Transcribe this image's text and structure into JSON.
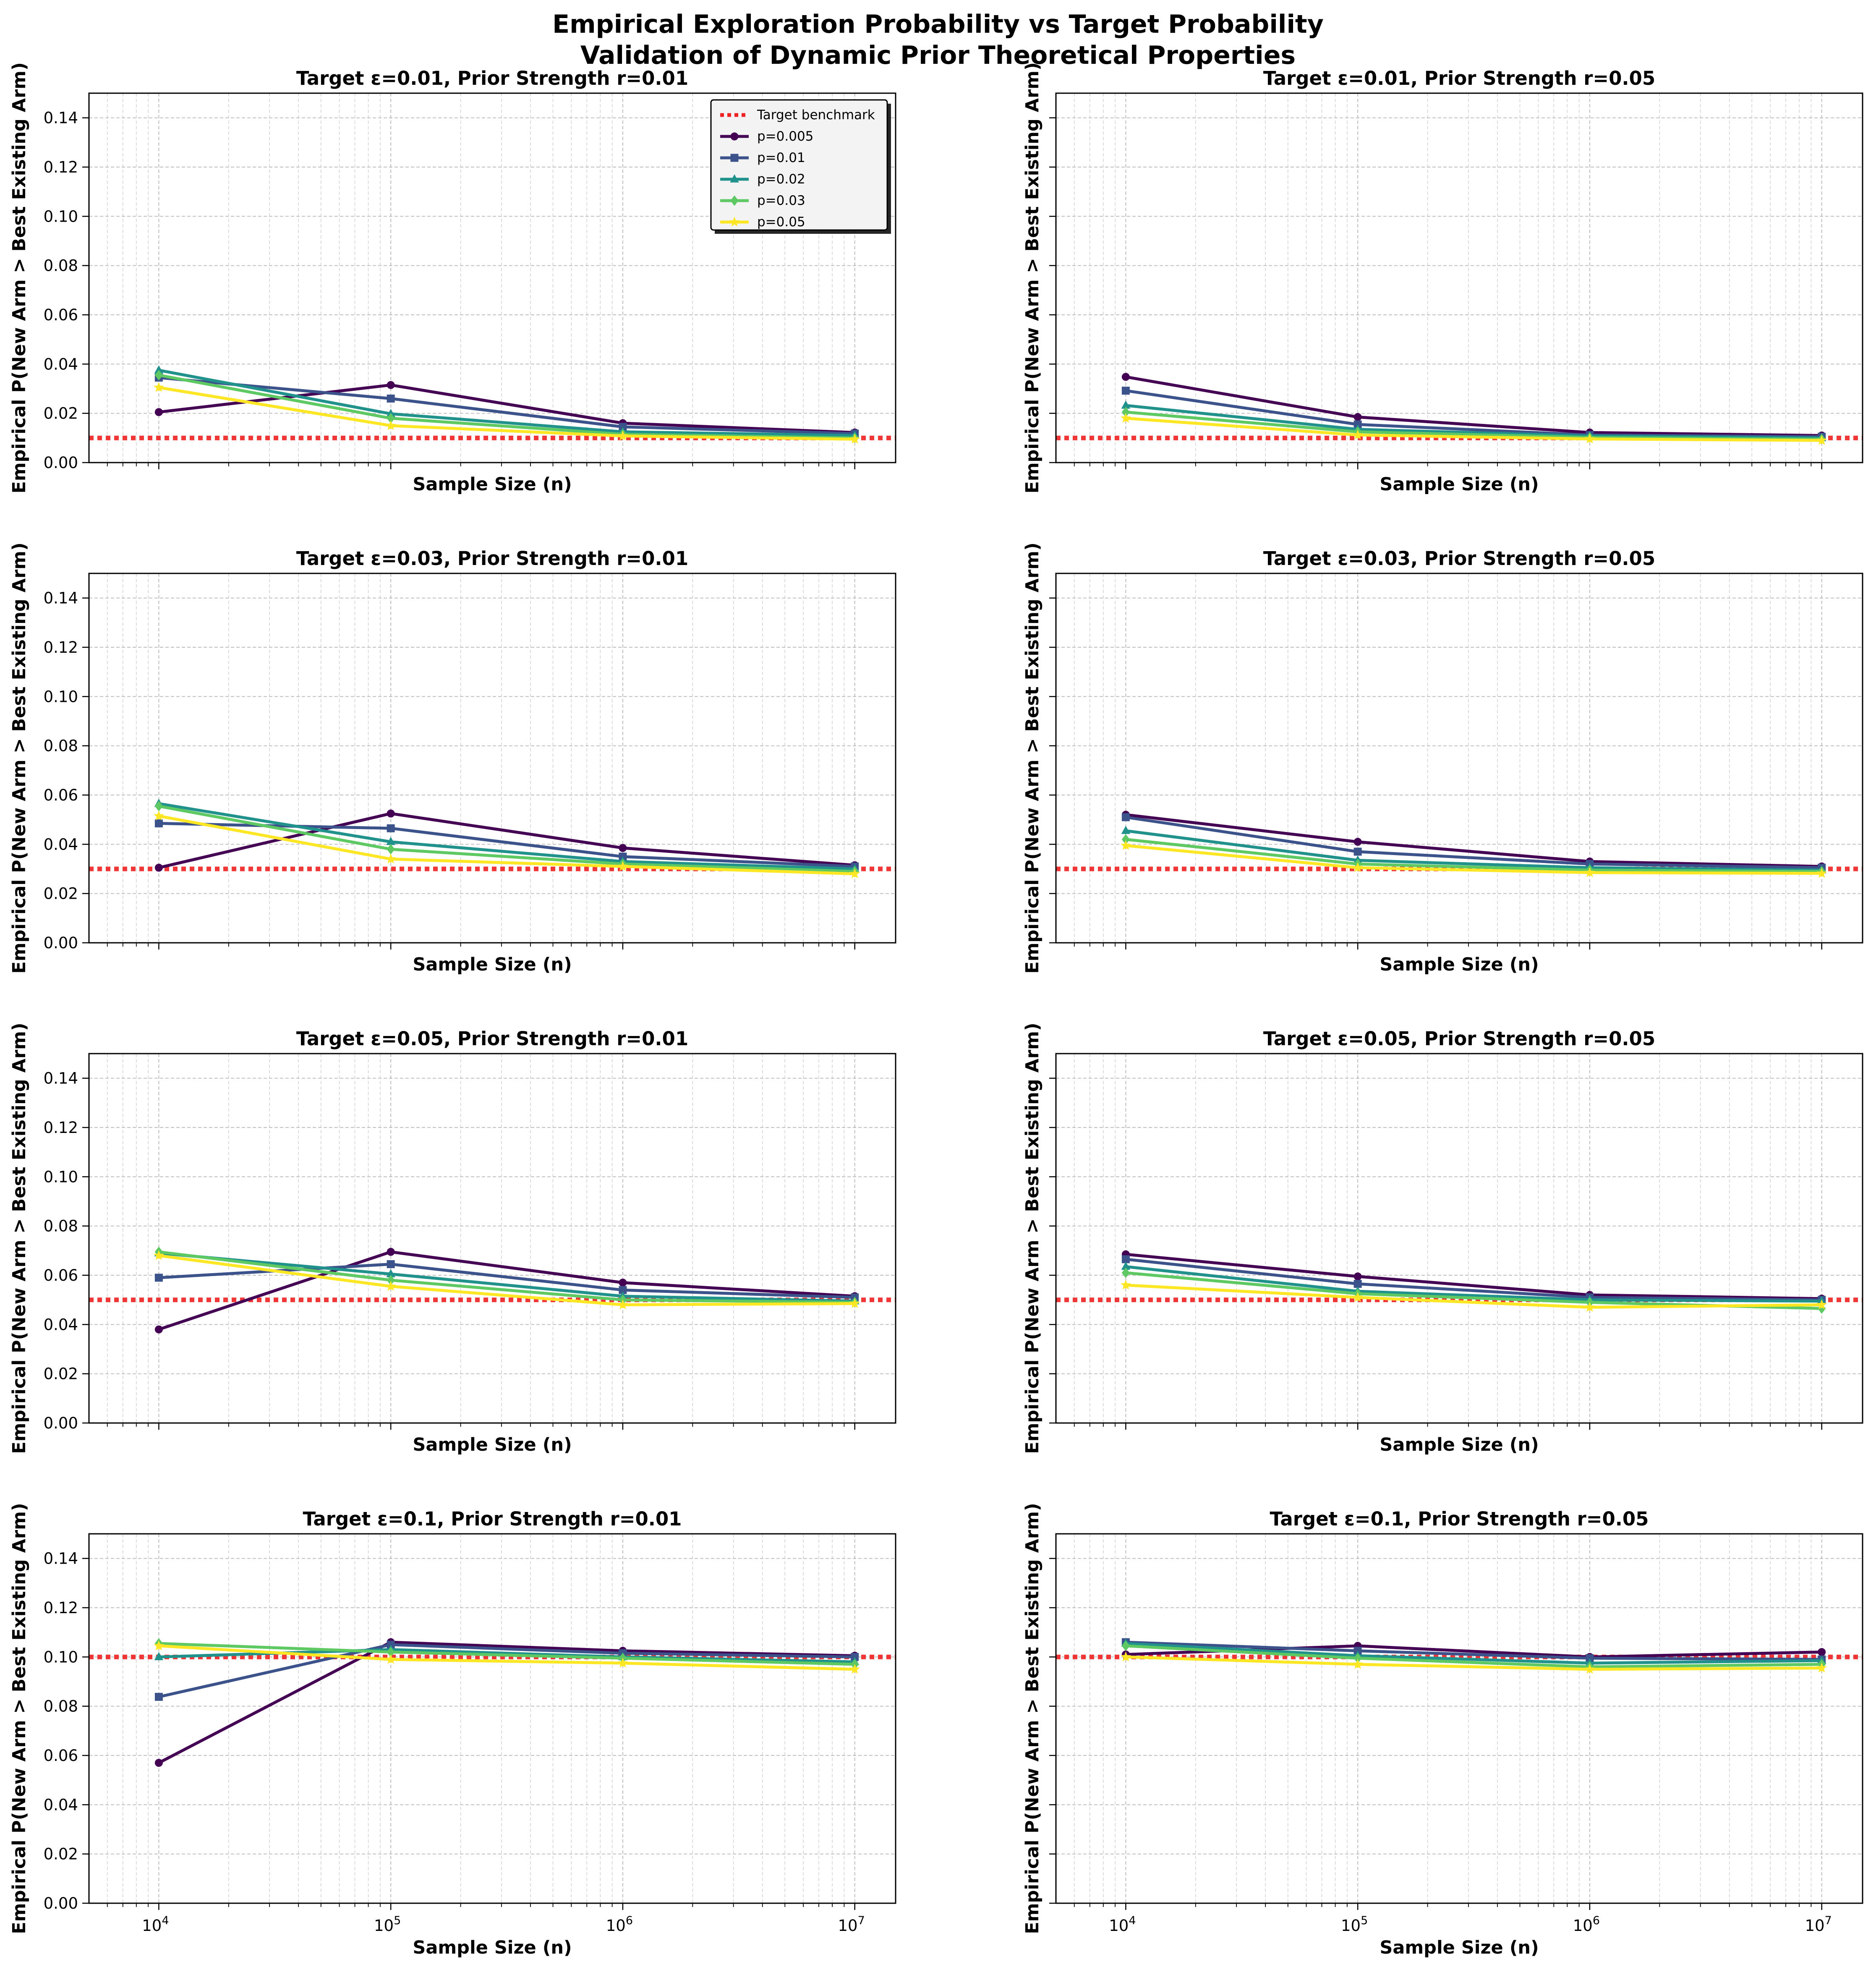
{
  "figure": {
    "title_line1": "Empirical Exploration Probability vs Target Probability",
    "title_line2": "Validation of Dynamic Prior Theoretical Properties"
  },
  "chart_data": {
    "type": "line",
    "xscale": "log",
    "x": [
      10000,
      100000,
      1000000,
      10000000
    ],
    "xlabel": "Sample Size (n)",
    "ylabel": "Empirical P(New Arm > Best Existing Arm)",
    "xlim": [
      5000,
      15000000
    ],
    "ylim": [
      0,
      0.15
    ],
    "yticks": [
      0.0,
      0.02,
      0.04,
      0.06,
      0.08,
      0.1,
      0.12,
      0.14
    ],
    "ytick_labels": [
      "0.00",
      "0.02",
      "0.04",
      "0.06",
      "0.08",
      "0.10",
      "0.12",
      "0.14"
    ],
    "xtick_labels": [
      {
        "base": "10",
        "exp": "4"
      },
      {
        "base": "10",
        "exp": "5"
      },
      {
        "base": "10",
        "exp": "6"
      },
      {
        "base": "10",
        "exp": "7"
      }
    ],
    "grid": true,
    "legend": {
      "location": "upper-right",
      "benchmark_label": "Target benchmark",
      "series_labels": [
        "p=0.005",
        "p=0.01",
        "p=0.02",
        "p=0.03",
        "p=0.05"
      ]
    },
    "series_colors": [
      "#440154",
      "#3b528b",
      "#21918c",
      "#5ec962",
      "#fde725"
    ],
    "benchmark_color": "#ee2222",
    "panels": [
      {
        "title": "Target ε=0.01, Prior Strength r=0.01",
        "target": 0.01,
        "series": [
          {
            "name": "p=0.005",
            "values": [
              0.0205,
              0.0315,
              0.016,
              0.0122
            ]
          },
          {
            "name": "p=0.01",
            "values": [
              0.0345,
              0.026,
              0.0145,
              0.0118
            ]
          },
          {
            "name": "p=0.02",
            "values": [
              0.0375,
              0.0198,
              0.0125,
              0.011
            ]
          },
          {
            "name": "p=0.03",
            "values": [
              0.0355,
              0.018,
              0.0115,
              0.01
            ]
          },
          {
            "name": "p=0.05",
            "values": [
              0.0305,
              0.015,
              0.0108,
              0.0095
            ]
          }
        ]
      },
      {
        "title": "Target ε=0.01, Prior Strength r=0.05",
        "target": 0.01,
        "series": [
          {
            "name": "p=0.005",
            "values": [
              0.0348,
              0.0185,
              0.0122,
              0.011
            ]
          },
          {
            "name": "p=0.01",
            "values": [
              0.0292,
              0.0155,
              0.0112,
              0.0105
            ]
          },
          {
            "name": "p=0.02",
            "values": [
              0.0232,
              0.0135,
              0.0108,
              0.01
            ]
          },
          {
            "name": "p=0.03",
            "values": [
              0.0205,
              0.0125,
              0.0102,
              0.0095
            ]
          },
          {
            "name": "p=0.05",
            "values": [
              0.018,
              0.0112,
              0.0096,
              0.009
            ]
          }
        ]
      },
      {
        "title": "Target ε=0.03, Prior Strength r=0.01",
        "target": 0.03,
        "series": [
          {
            "name": "p=0.005",
            "values": [
              0.0305,
              0.0525,
              0.0385,
              0.0315
            ]
          },
          {
            "name": "p=0.01",
            "values": [
              0.0485,
              0.0465,
              0.035,
              0.031
            ]
          },
          {
            "name": "p=0.02",
            "values": [
              0.0565,
              0.041,
              0.033,
              0.03
            ]
          },
          {
            "name": "p=0.03",
            "values": [
              0.0555,
              0.038,
              0.032,
              0.029
            ]
          },
          {
            "name": "p=0.05",
            "values": [
              0.0515,
              0.034,
              0.031,
              0.028
            ]
          }
        ]
      },
      {
        "title": "Target ε=0.03, Prior Strength r=0.05",
        "target": 0.03,
        "series": [
          {
            "name": "p=0.005",
            "values": [
              0.052,
              0.041,
              0.033,
              0.031
            ]
          },
          {
            "name": "p=0.01",
            "values": [
              0.051,
              0.037,
              0.032,
              0.0305
            ]
          },
          {
            "name": "p=0.02",
            "values": [
              0.0455,
              0.0335,
              0.0305,
              0.0295
            ]
          },
          {
            "name": "p=0.03",
            "values": [
              0.042,
              0.032,
              0.0295,
              0.029
            ]
          },
          {
            "name": "p=0.05",
            "values": [
              0.0395,
              0.0305,
              0.0285,
              0.0282
            ]
          }
        ]
      },
      {
        "title": "Target ε=0.05, Prior Strength r=0.01",
        "target": 0.05,
        "series": [
          {
            "name": "p=0.005",
            "values": [
              0.038,
              0.0695,
              0.057,
              0.0515
            ]
          },
          {
            "name": "p=0.01",
            "values": [
              0.059,
              0.0645,
              0.054,
              0.051
            ]
          },
          {
            "name": "p=0.02",
            "values": [
              0.069,
              0.0605,
              0.0515,
              0.0495
            ]
          },
          {
            "name": "p=0.03",
            "values": [
              0.0695,
              0.058,
              0.05,
              0.049
            ]
          },
          {
            "name": "p=0.05",
            "values": [
              0.068,
              0.0555,
              0.048,
              0.0485
            ]
          }
        ]
      },
      {
        "title": "Target ε=0.05, Prior Strength r=0.05",
        "target": 0.05,
        "series": [
          {
            "name": "p=0.005",
            "values": [
              0.0685,
              0.0595,
              0.052,
              0.0505
            ]
          },
          {
            "name": "p=0.01",
            "values": [
              0.0665,
              0.0565,
              0.051,
              0.05
            ]
          },
          {
            "name": "p=0.02",
            "values": [
              0.0635,
              0.0535,
              0.05,
              0.0495
            ]
          },
          {
            "name": "p=0.03",
            "values": [
              0.061,
              0.0525,
              0.049,
              0.0465
            ]
          },
          {
            "name": "p=0.05",
            "values": [
              0.056,
              0.051,
              0.047,
              0.048
            ]
          }
        ]
      },
      {
        "title": "Target ε=0.1, Prior Strength r=0.01",
        "target": 0.1,
        "series": [
          {
            "name": "p=0.005",
            "values": [
              0.057,
              0.106,
              0.1025,
              0.1005
            ]
          },
          {
            "name": "p=0.01",
            "values": [
              0.0838,
              0.105,
              0.1015,
              0.1
            ]
          },
          {
            "name": "p=0.02",
            "values": [
              0.1,
              0.103,
              0.1,
              0.098
            ]
          },
          {
            "name": "p=0.03",
            "values": [
              0.1055,
              0.102,
              0.0995,
              0.097
            ]
          },
          {
            "name": "p=0.05",
            "values": [
              0.1045,
              0.099,
              0.0975,
              0.095
            ]
          }
        ]
      },
      {
        "title": "Target ε=0.1, Prior Strength r=0.05",
        "target": 0.1,
        "series": [
          {
            "name": "p=0.005",
            "values": [
              0.101,
              0.1045,
              0.1,
              0.102
            ]
          },
          {
            "name": "p=0.01",
            "values": [
              0.106,
              0.1025,
              0.0995,
              0.099
            ]
          },
          {
            "name": "p=0.02",
            "values": [
              0.1055,
              0.1005,
              0.0975,
              0.0985
            ]
          },
          {
            "name": "p=0.03",
            "values": [
              0.1045,
              0.0995,
              0.096,
              0.097
            ]
          },
          {
            "name": "p=0.05",
            "values": [
              0.1,
              0.097,
              0.095,
              0.0955
            ]
          }
        ]
      }
    ]
  }
}
